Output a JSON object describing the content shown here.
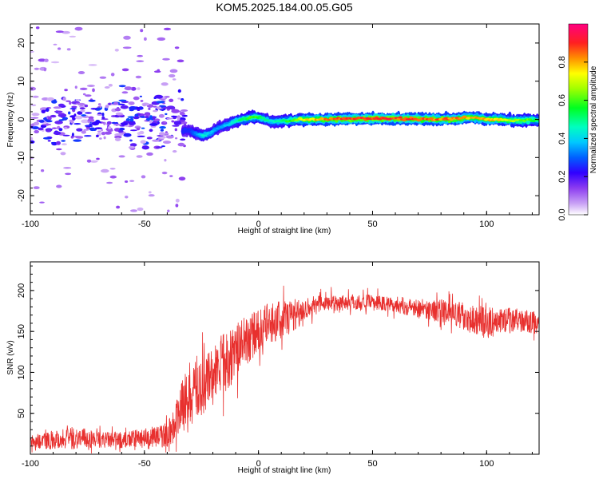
{
  "title": "KOM5.2025.184.00.05.G05",
  "chart_data": [
    {
      "type": "heatmap",
      "xlabel": "Height of straight line (km)",
      "ylabel": "Frequency (Hz)",
      "xlim": [
        -100,
        123
      ],
      "ylim": [
        -25,
        25
      ],
      "xticks": [
        -100,
        -50,
        0,
        50,
        100
      ],
      "yticks": [
        -20,
        -10,
        0,
        10,
        20
      ],
      "colorbar": {
        "label": "Normalized spectral amplitude",
        "range": [
          0,
          1
        ],
        "ticks": [
          0.0,
          0.2,
          0.4,
          0.6,
          0.8
        ]
      },
      "ridge": {
        "x": [
          -30,
          -27,
          -24,
          -21,
          -18,
          -15,
          -12,
          -9,
          -6,
          -3,
          0,
          3,
          6,
          9,
          12,
          15,
          20,
          30,
          40,
          50,
          60,
          70,
          80,
          88,
          92,
          96,
          100,
          105,
          110,
          115,
          120,
          123
        ],
        "freq": [
          -3.0,
          -3.8,
          -4.2,
          -3.6,
          -2.2,
          -1.8,
          -0.9,
          -0.3,
          0.2,
          0.5,
          0.6,
          0.0,
          -0.6,
          -0.5,
          -0.4,
          -0.2,
          0.0,
          0.0,
          0.1,
          0.2,
          0.2,
          0.1,
          0.0,
          0.2,
          0.6,
          0.4,
          0.0,
          0.0,
          -0.2,
          -0.3,
          -0.2,
          -0.3
        ],
        "amplitude": [
          0.25,
          0.35,
          0.45,
          0.4,
          0.35,
          0.38,
          0.42,
          0.5,
          0.55,
          0.6,
          0.6,
          0.5,
          0.45,
          0.48,
          0.55,
          0.62,
          0.75,
          0.85,
          0.9,
          0.92,
          0.9,
          0.88,
          0.86,
          0.85,
          0.82,
          0.8,
          0.82,
          0.78,
          0.72,
          0.65,
          0.6,
          0.55
        ]
      },
      "scatter_region": {
        "x": [
          -100,
          -32
        ],
        "freq": [
          -24,
          24
        ],
        "amplitude": [
          0.0,
          0.25
        ]
      }
    },
    {
      "type": "line",
      "xlabel": "Height of straight line (km)",
      "ylabel": "SNR (v/v)",
      "xlim": [
        -100,
        123
      ],
      "ylim": [
        0,
        235
      ],
      "xticks": [
        -100,
        -50,
        0,
        50,
        100
      ],
      "yticks": [
        50,
        100,
        150,
        200
      ],
      "color": "#e8302e",
      "trend": {
        "x": [
          -100,
          -90,
          -80,
          -70,
          -60,
          -50,
          -42,
          -38,
          -34,
          -30,
          -25,
          -20,
          -15,
          -10,
          -5,
          0,
          5,
          10,
          15,
          20,
          25,
          30,
          40,
          50,
          60,
          70,
          80,
          90,
          95,
          100,
          105,
          110,
          115,
          123
        ],
        "snr": [
          15,
          18,
          20,
          18,
          17,
          20,
          22,
          30,
          55,
          75,
          85,
          95,
          110,
          125,
          140,
          150,
          160,
          165,
          170,
          178,
          182,
          185,
          186,
          185,
          183,
          178,
          175,
          168,
          165,
          160,
          162,
          165,
          163,
          160
        ],
        "spread": [
          8,
          12,
          14,
          10,
          10,
          12,
          14,
          20,
          30,
          40,
          40,
          38,
          36,
          34,
          30,
          28,
          26,
          24,
          22,
          14,
          12,
          11,
          10,
          10,
          10,
          12,
          14,
          16,
          18,
          20,
          16,
          15,
          14,
          14
        ]
      }
    }
  ]
}
